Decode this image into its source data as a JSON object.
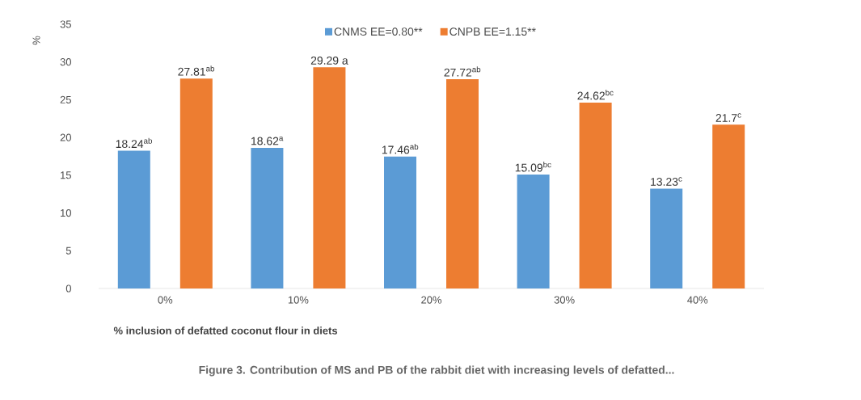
{
  "chart_data": {
    "type": "bar",
    "title": "Figure 3. Contribution of MS and PB of the rabbit diet with increasing levels of defatted...",
    "xlabel": "% inclusion of defatted coconut flour in diets",
    "ylabel": "%",
    "categories": [
      "0%",
      "10%",
      "20%",
      "30%",
      "40%"
    ],
    "series": [
      {
        "name": "CNMS EE=0.80**",
        "color": "#5b9bd5",
        "values": [
          18.24,
          18.62,
          17.46,
          15.09,
          13.23
        ],
        "value_labels": [
          "18.24$^{ab}$",
          "18.62$^{a}$",
          "17.46$^{ab}$",
          "15.09$^{bc}$",
          "13.23$^{c}$"
        ]
      },
      {
        "name": "CNPB   EE=1.15**",
        "color": "#ed7d31",
        "values": [
          27.81,
          29.29,
          27.72,
          24.62,
          21.7
        ],
        "value_labels": [
          "27.81$^{ab}$",
          "29.29 a",
          "27.72$^{ab}$",
          "24.62$^{bc}$",
          "21.7$^{c}$"
        ]
      }
    ],
    "ylim": [
      0,
      35
    ],
    "yticks": [
      0,
      5,
      10,
      15,
      20,
      25,
      30,
      35
    ],
    "grid": false,
    "legend": "top"
  }
}
